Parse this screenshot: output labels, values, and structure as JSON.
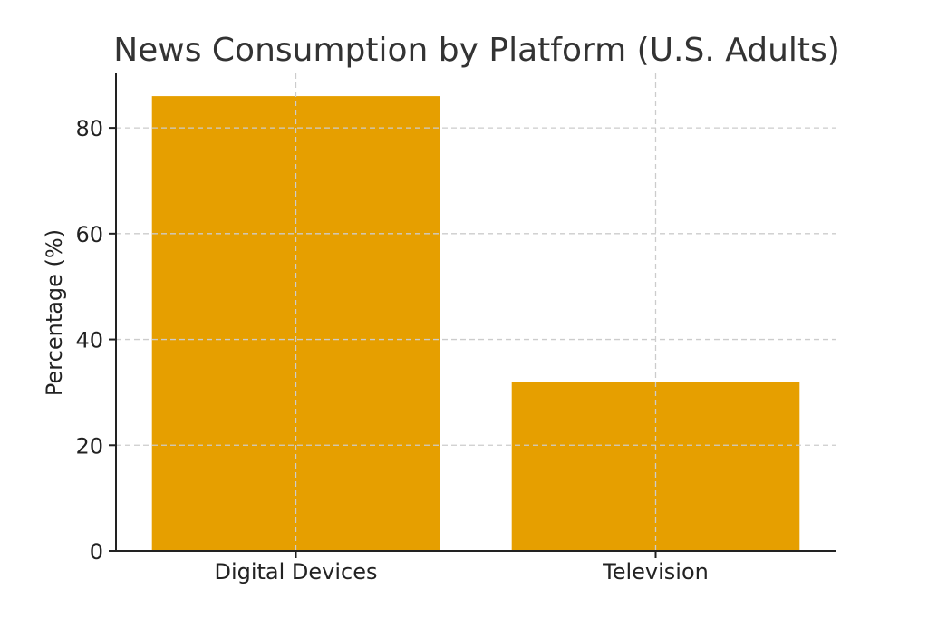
{
  "chart_data": {
    "type": "bar",
    "title": "News Consumption by Platform (U.S. Adults)",
    "xlabel": "",
    "ylabel": "Percentage (%)",
    "categories": [
      "Digital Devices",
      "Television"
    ],
    "values": [
      86,
      32
    ],
    "ylim": [
      0,
      90.3
    ],
    "yticks": [
      "0",
      "20",
      "40",
      "60",
      "80"
    ],
    "grid": true,
    "colors": {
      "bar": "#E69F00"
    }
  }
}
